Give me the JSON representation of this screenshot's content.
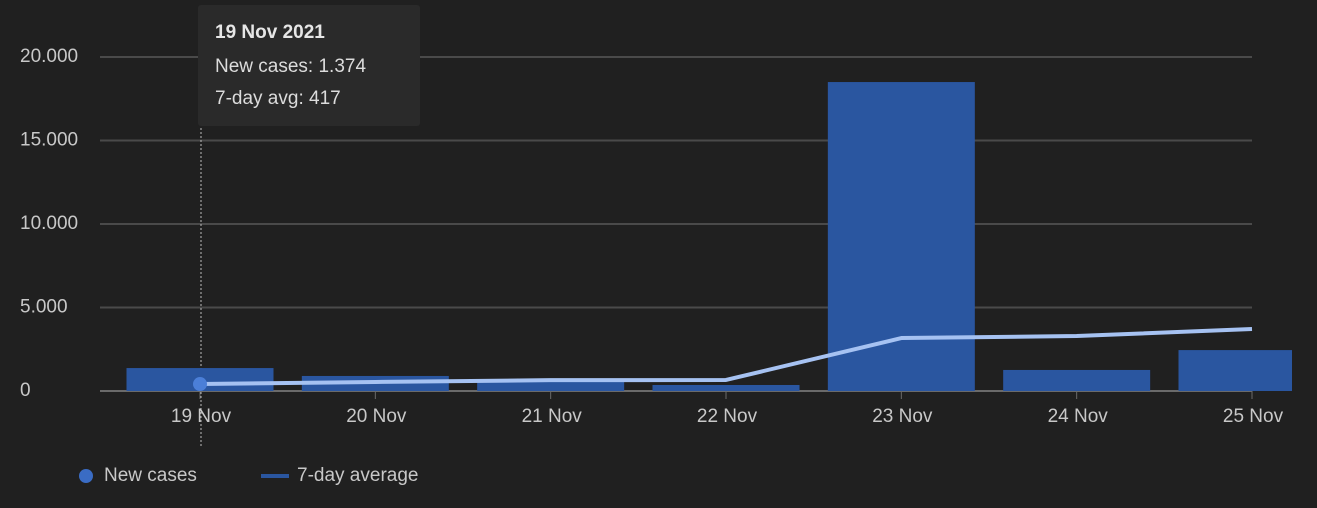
{
  "chart_data": {
    "type": "bar",
    "categories": [
      "19 Nov",
      "20 Nov",
      "21 Nov",
      "22 Nov",
      "23 Nov",
      "24 Nov",
      "25 Nov"
    ],
    "series": [
      {
        "name": "New cases",
        "color": "#2a56a0",
        "type": "bar",
        "values": [
          1374,
          900,
          620,
          360,
          18500,
          1260,
          2450
        ]
      },
      {
        "name": "7-day average",
        "color": "#a6c2f2",
        "type": "line",
        "values": [
          417,
          540,
          650,
          660,
          3170,
          3290,
          3710
        ]
      }
    ],
    "ylim": [
      0,
      20000
    ],
    "yticks": [
      0,
      {
        "value": 5000,
        "label": "5.000"
      },
      {
        "value": 10000,
        "label": "10.000"
      },
      {
        "value": 15000,
        "label": "15.000"
      },
      {
        "value": 20000,
        "label": "20.000"
      }
    ],
    "grid": true,
    "legend": "bottom-left",
    "tooltip": {
      "title": "19 Nov 2021",
      "lines": [
        "New cases: 1.374",
        "7-day avg: 417"
      ]
    }
  }
}
